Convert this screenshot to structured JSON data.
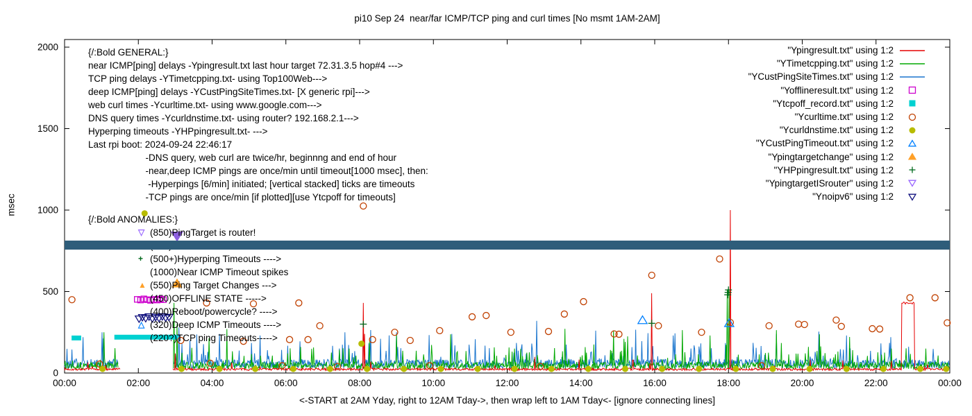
{
  "chart_data": {
    "type": "line+scatter",
    "title": "pi10 Sep 24  near/far ICMP/TCP ping and curl times [No msmt 1AM-2AM]",
    "xlabel": "<-START at 2AM Yday, right to 12AM Tday->, then wrap left to 1AM Tday<- [ignore connecting lines]",
    "ylabel": "msec",
    "xlim": [
      0,
      24
    ],
    "ylim": [
      0,
      2000
    ],
    "grid": false,
    "xticks": {
      "hours": [
        0,
        2,
        4,
        6,
        8,
        10,
        12,
        14,
        16,
        18,
        20,
        22,
        24
      ],
      "labels": [
        "00:00",
        "02:00",
        "04:00",
        "06:00",
        "08:00",
        "10:00",
        "12:00",
        "14:00",
        "16:00",
        "18:00",
        "20:00",
        "22:00",
        "00:00"
      ]
    },
    "yticks": [
      0,
      500,
      1000,
      1500,
      2000
    ],
    "legend": {
      "position": "top-right",
      "items": [
        {
          "label": "\"Ypingresult.txt\" using 1:2",
          "marker": "line",
          "color": "#e60000"
        },
        {
          "label": "\"YTimetcpping.txt\" using 1:2",
          "marker": "line",
          "color": "#00a800"
        },
        {
          "label": "\"YCustPingSiteTimes.txt\" using 1:2",
          "marker": "line",
          "color": "#1874cd"
        },
        {
          "label": "\"Yofflineresult.txt\" using 1:2",
          "marker": "square-open",
          "color": "#cc00cc"
        },
        {
          "label": "\"Ytcpoff_record.txt\" using 1:2",
          "marker": "square-filled",
          "color": "#00d1d1"
        },
        {
          "label": "\"Ycurltime.txt\" using 1:2",
          "marker": "circle-open",
          "color": "#c04000"
        },
        {
          "label": "\"Ycurldnstime.txt\" using 1:2",
          "marker": "circle-filled",
          "color": "#b8bc00"
        },
        {
          "label": "\"YCustPingTimeout.txt\" using 1:2",
          "marker": "tri-up-open",
          "color": "#0080ff"
        },
        {
          "label": "\"Ypingtargetchange\" using 1:2",
          "marker": "tri-up-filled",
          "color": "#ffa028"
        },
        {
          "label": "\"YHPpingresult.txt\" using 1:2",
          "marker": "plus",
          "color": "#00691c"
        },
        {
          "label": "\"YpingtargetISrouter\" using 1:2",
          "marker": "tri-down-open",
          "color": "#9966ff"
        },
        {
          "label": "\"Ynoipv6\" using 1:2",
          "marker": "tri-down-open",
          "color": "#10107e"
        }
      ]
    },
    "band": {
      "name": "Ynoipv6",
      "from_msec": 758,
      "to_msec": 812,
      "color": "#2e5d7a"
    },
    "line_series": [
      {
        "name": "YCustPingSiteTimes",
        "label": "deep ICMP ping delays",
        "color": "#1874cd",
        "seed": 29,
        "base": [
          28,
          85
        ],
        "spike_prob": 0.09,
        "spike": [
          80,
          185
        ],
        "gaps": [
          [
            1.45,
            2.95
          ]
        ],
        "events": [
          [
            0.5,
            220
          ],
          [
            3.1,
            280
          ],
          [
            4.2,
            240
          ],
          [
            5.3,
            230
          ],
          [
            7.6,
            250
          ],
          [
            8.1,
            300
          ],
          [
            9.0,
            250
          ],
          [
            10.5,
            240
          ],
          [
            12.8,
            320
          ],
          [
            14.4,
            260
          ],
          [
            16.5,
            230
          ],
          [
            19.3,
            240
          ],
          [
            21.2,
            230
          ],
          [
            22.4,
            220
          ]
        ],
        "steps": []
      },
      {
        "name": "YTimetcpping",
        "label": "TCP ping delays",
        "color": "#00a800",
        "seed": 13,
        "base": [
          22,
          68
        ],
        "spike_prob": 0.07,
        "spike": [
          70,
          165
        ],
        "gaps": [
          [
            1.45,
            2.95
          ]
        ],
        "events": [
          [
            1.07,
            250
          ],
          [
            2.97,
            430
          ],
          [
            3.05,
            300
          ],
          [
            6.4,
            160
          ],
          [
            17.5,
            230
          ],
          [
            17.97,
            510
          ],
          [
            18.02,
            505
          ],
          [
            23.35,
            150
          ]
        ],
        "steps": []
      },
      {
        "name": "Ypingresult",
        "label": "near ICMP ping delays",
        "color": "#e60000",
        "seed": 7,
        "base": [
          16,
          30
        ],
        "spike_prob": 0.012,
        "spike": [
          40,
          90
        ],
        "gaps": [
          [
            1.5,
            2.93
          ]
        ],
        "events": [
          [
            3.0,
            120
          ],
          [
            8.1,
            430
          ],
          [
            8.13,
            240
          ],
          [
            15.92,
            490
          ],
          [
            18.05,
            1000
          ]
        ],
        "steps": [
          {
            "from": 22.7,
            "to": 23.03,
            "value": 430,
            "jitter": 14
          }
        ]
      }
    ],
    "bars": {
      "name": "Ytcpoff_record",
      "color": "#00d1d1",
      "segments": [
        [
          0.19,
          0.45,
          215
        ],
        [
          1.35,
          3.08,
          220
        ]
      ]
    },
    "scatter_series": [
      {
        "name": "Ycurltime",
        "marker": "circle-open",
        "color": "#c04000",
        "size": 4.5,
        "points": [
          [
            0.2,
            450
          ],
          [
            0.95,
            55
          ],
          [
            3.15,
            200
          ],
          [
            3.85,
            430
          ],
          [
            3.95,
            60
          ],
          [
            4.85,
            195
          ],
          [
            5.12,
            425
          ],
          [
            5.9,
            45
          ],
          [
            6.1,
            205
          ],
          [
            6.35,
            430
          ],
          [
            6.6,
            205
          ],
          [
            6.92,
            290
          ],
          [
            7.4,
            40
          ],
          [
            8.1,
            1025
          ],
          [
            8.35,
            205
          ],
          [
            8.95,
            250
          ],
          [
            9.37,
            200
          ],
          [
            9.9,
            45
          ],
          [
            10.17,
            260
          ],
          [
            11.05,
            345
          ],
          [
            11.43,
            353
          ],
          [
            12.1,
            250
          ],
          [
            12.9,
            40
          ],
          [
            13.12,
            255
          ],
          [
            13.55,
            362
          ],
          [
            14.07,
            438
          ],
          [
            14.9,
            240
          ],
          [
            15.03,
            238
          ],
          [
            15.92,
            600
          ],
          [
            16.1,
            290
          ],
          [
            17.27,
            250
          ],
          [
            17.76,
            700
          ],
          [
            18.05,
            310
          ],
          [
            18.9,
            45
          ],
          [
            19.1,
            290
          ],
          [
            19.9,
            300
          ],
          [
            20.06,
            298
          ],
          [
            20.92,
            325
          ],
          [
            21.06,
            286
          ],
          [
            21.9,
            272
          ],
          [
            22.1,
            270
          ],
          [
            22.92,
            462
          ],
          [
            23.6,
            462
          ],
          [
            23.93,
            308
          ]
        ]
      },
      {
        "name": "Ycurldnstime",
        "marker": "circle-filled",
        "color": "#b8bc00",
        "size": 4.5,
        "points": [
          [
            1.03,
            25
          ],
          [
            2.17,
            980
          ],
          [
            3.17,
            25
          ],
          [
            4.2,
            25
          ],
          [
            5.17,
            25
          ],
          [
            6.2,
            25
          ],
          [
            7.2,
            25
          ],
          [
            8.05,
            180
          ],
          [
            8.2,
            25
          ],
          [
            9.2,
            25
          ],
          [
            10.2,
            25
          ],
          [
            11.2,
            25
          ],
          [
            12.2,
            25
          ],
          [
            13.2,
            25
          ],
          [
            14.2,
            25
          ],
          [
            15.2,
            25
          ],
          [
            16.2,
            25
          ],
          [
            17.2,
            25
          ],
          [
            18.2,
            25
          ],
          [
            19.2,
            25
          ],
          [
            20.2,
            25
          ],
          [
            21.2,
            25
          ],
          [
            22.2,
            25
          ],
          [
            23.2,
            25
          ],
          [
            23.9,
            25
          ]
        ]
      },
      {
        "name": "YCustPingTimeout",
        "marker": "tri-up-open",
        "color": "#0080ff",
        "size": 6,
        "points": [
          [
            15.67,
            325
          ],
          [
            18.02,
            307
          ]
        ]
      },
      {
        "name": "Ypingtargetchange",
        "marker": "tri-up-filled",
        "color": "#ffa028",
        "size": 6,
        "points": [
          [
            3.05,
            550
          ]
        ]
      },
      {
        "name": "YHPpingresult",
        "marker": "plus",
        "color": "#00691c",
        "size": 5,
        "points": [
          [
            8.1,
            300
          ],
          [
            15.92,
            305
          ],
          [
            17.98,
            480
          ],
          [
            17.99,
            495
          ],
          [
            18.0,
            510
          ]
        ]
      },
      {
        "name": "YpingtargetISrouter",
        "marker": "tri-down-filled",
        "color": "#8d5fe0",
        "size": 7,
        "points": [
          [
            3.05,
            840
          ]
        ]
      },
      {
        "name": "Yofflineresult",
        "marker": "square-open",
        "color": "#cc00cc",
        "size": 4,
        "points": [
          [
            1.97,
            452
          ],
          [
            2.06,
            448
          ],
          [
            2.15,
            455
          ],
          [
            2.24,
            450
          ],
          [
            2.33,
            446
          ],
          [
            2.42,
            452
          ],
          [
            2.51,
            448
          ],
          [
            2.6,
            454
          ],
          [
            2.68,
            450
          ]
        ]
      },
      {
        "name": "Ynoipv6_reboot_cluster",
        "marker": "tri-down-open",
        "color": "#10107e",
        "size": 5,
        "points": [
          [
            2.02,
            332
          ],
          [
            2.11,
            341
          ],
          [
            2.2,
            335
          ],
          [
            2.29,
            345
          ],
          [
            2.38,
            333
          ],
          [
            2.47,
            342
          ],
          [
            2.56,
            336
          ],
          [
            2.65,
            346
          ],
          [
            2.74,
            338
          ],
          [
            2.83,
            342
          ]
        ]
      }
    ],
    "annotations": {
      "general": {
        "lines": [
          "{/:Bold GENERAL:}",
          "near ICMP[ping] delays -Ypingresult.txt last hour target 72.31.3.5 hop#4 --->",
          "TCP ping delays -YTimetcpping.txt- using Top100Web--->",
          "deep ICMP[ping] delays -YCustPingSiteTimes.txt- [X generic rpi]--->",
          "web curl times -Ycurltime.txt- using www.google.com--->",
          "DNS query times -Ycurldnstime.txt- using router? 192.168.2.1--->",
          "Hyperping timeouts -YHPpingresult.txt- --->",
          "Last rpi boot: 2024-09-24 22:46:17",
          "                      -DNS query, web curl are twice/hr, beginnng and end of hour",
          "                      -near,deep ICMP pings are once/min until timeout[1000 msec], then:",
          "                       -Hyperpings [6/min] initiated; [vertical stacked] ticks are timeouts",
          "                      -TCP pings are once/min [if plotted][use Ytcpoff for timeouts]"
        ]
      },
      "anomalies": {
        "lines": [
          {
            "glyph": "",
            "glyph_color": "",
            "text": "{/:Bold ANOMALIES:}"
          },
          {
            "glyph": "▽",
            "glyph_color": "#9966ff",
            "text": "(850)PingTarget is router!"
          },
          {
            "glyph": "▽",
            "glyph_color": "#10107e",
            "text": "(785)"
          },
          {
            "glyph": "+",
            "glyph_color": "#00691c",
            "text": "(500+)Hyperping Timeouts ---->"
          },
          {
            "glyph": "",
            "glyph_color": "",
            "text": "(1000)Near ICMP Timeout spikes"
          },
          {
            "glyph": "▲",
            "glyph_color": "#ffa028",
            "text": "(550)Ping Target Changes --->"
          },
          {
            "glyph": "",
            "glyph_color": "",
            "text": "(450)OFFLINE STATE ----->"
          },
          {
            "glyph": "",
            "glyph_color": "",
            "text": "(400)Reboot/powercycle? ---->"
          },
          {
            "glyph": "△",
            "glyph_color": "#0080ff",
            "text": "(320)Deep ICMP Timeouts ---->"
          },
          {
            "glyph": "",
            "glyph_color": "",
            "text": "(220?)TCP ping Timeouts----->"
          }
        ]
      }
    }
  }
}
